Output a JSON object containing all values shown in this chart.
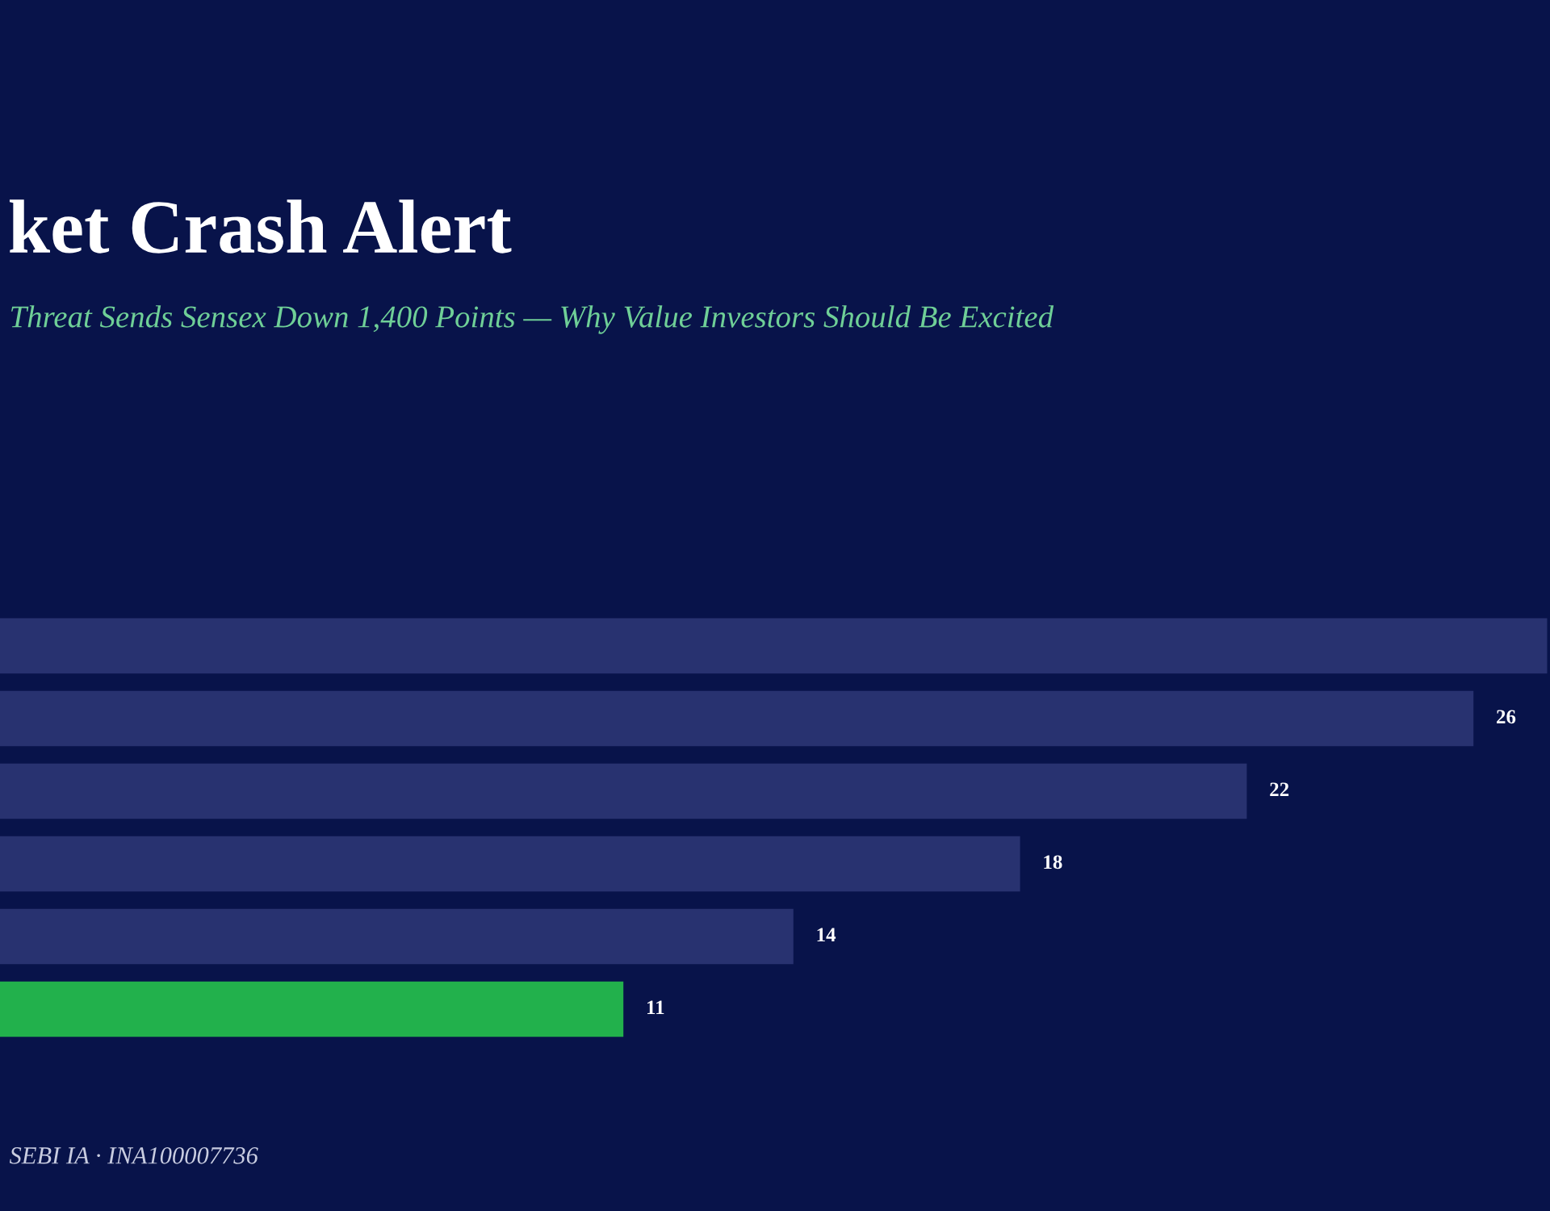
{
  "chart_data": {
    "type": "bar",
    "orientation": "horizontal",
    "title": "ket Crash Alert",
    "subtitle": "Threat Sends Sensex Down 1,400 Points — Why Value Investors Should Be Excited",
    "annotations": [
      "SEBI IA · INA100007736"
    ],
    "categories": [
      null,
      null,
      null,
      null,
      null,
      null
    ],
    "values": [
      27.3,
      26,
      22,
      18,
      14,
      11
    ],
    "colors": [
      "#283270",
      "#283270",
      "#283270",
      "#283270",
      "#283270",
      "#22b14c"
    ],
    "value_labels": [
      null,
      "26",
      "22",
      "18",
      "14",
      "11"
    ],
    "tick_labels": false,
    "grid": false
  }
}
